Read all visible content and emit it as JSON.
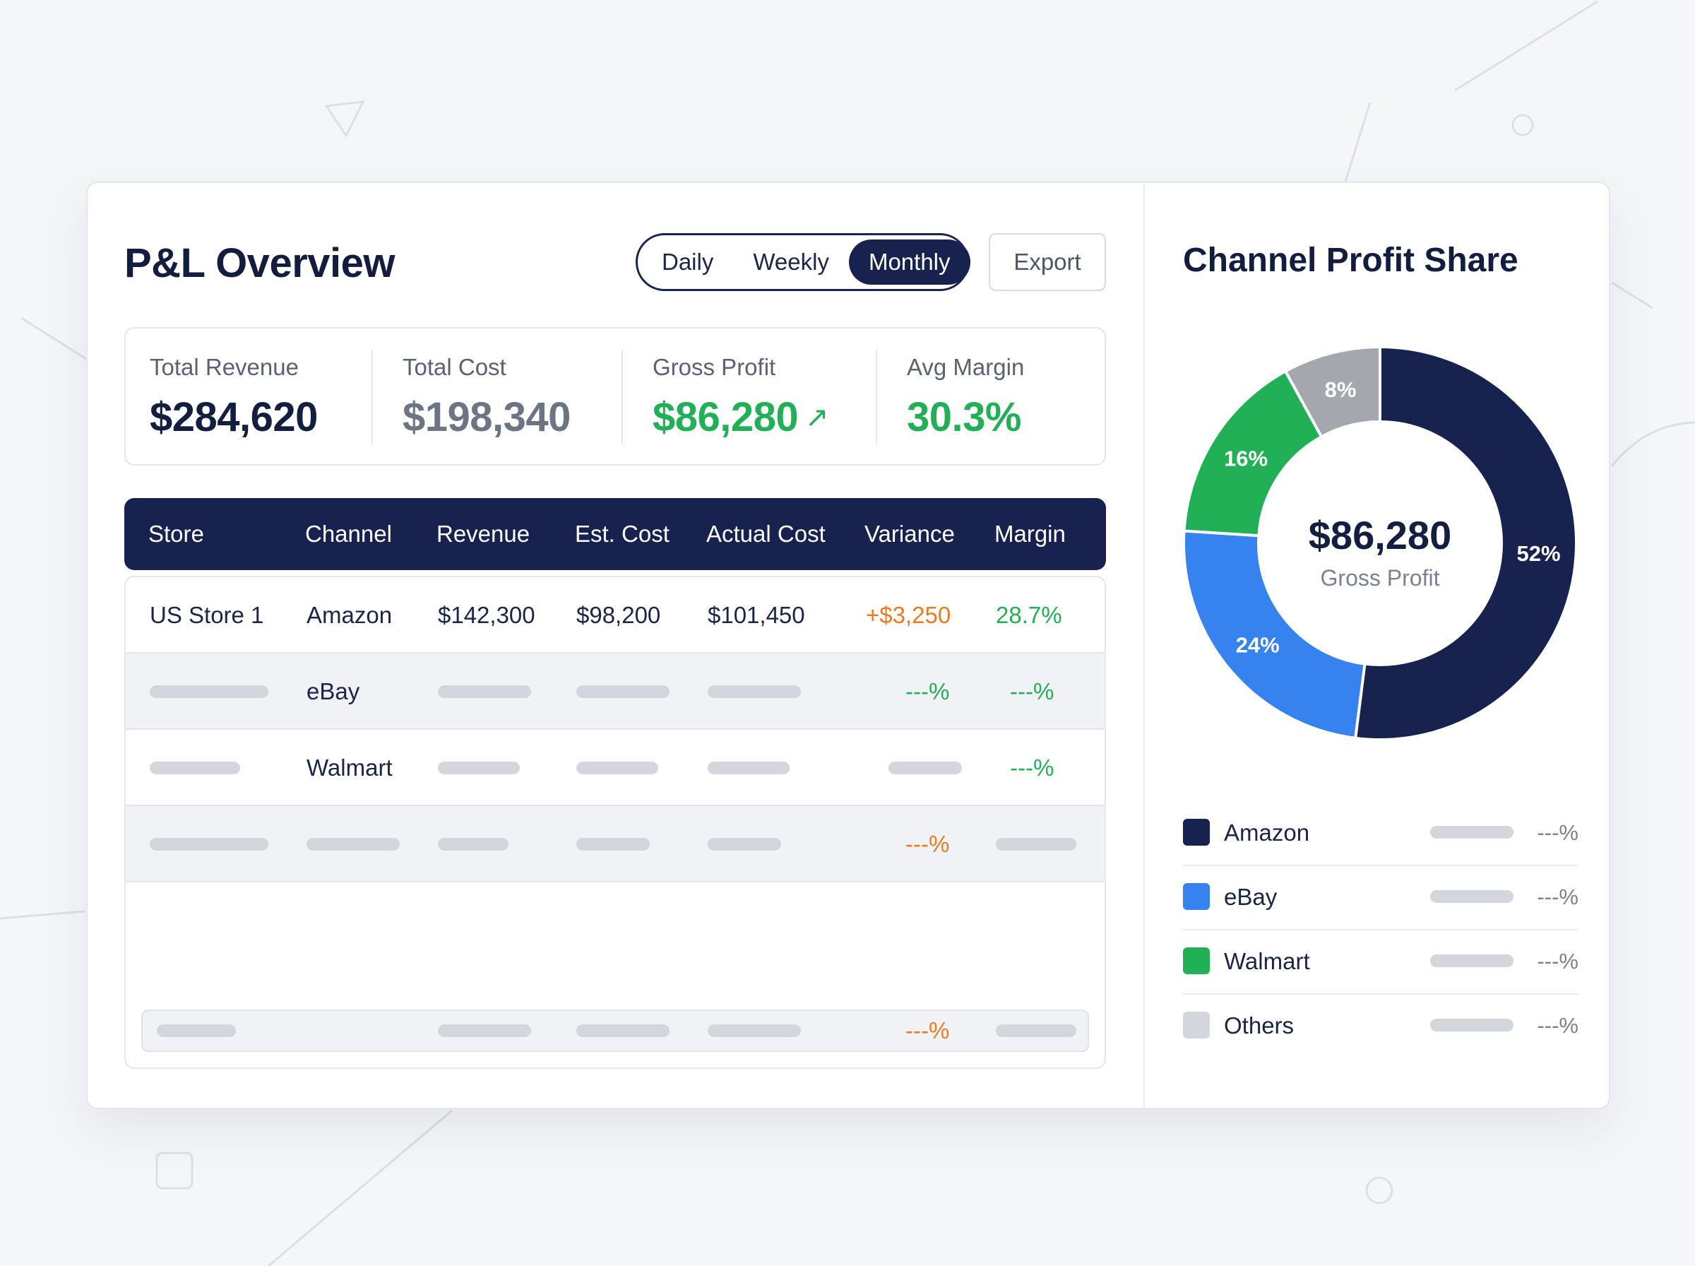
{
  "header": {
    "title": "P&L Overview",
    "period_options": [
      "Daily",
      "Weekly",
      "Monthly"
    ],
    "active_period": "Monthly",
    "export_label": "Export"
  },
  "stats": [
    {
      "label": "Total Revenue",
      "value": "$284,620"
    },
    {
      "label": "Total Cost",
      "value": "$198,340"
    },
    {
      "label": "Gross Profit",
      "value": "$86,280",
      "trend": "↗"
    },
    {
      "label": "Avg Margin",
      "value": "30.3%"
    }
  ],
  "table": {
    "columns": [
      "Store",
      "Channel",
      "Revenue",
      "Est. Cost",
      "Actual Cost",
      "Variance",
      "Margin"
    ],
    "rows": [
      {
        "store": "US Store 1",
        "channel": "Amazon",
        "revenue": "$142,300",
        "est_cost": "$98,200",
        "actual_cost": "$101,450",
        "variance": "+$3,250",
        "margin": "28.7%"
      },
      {
        "store": "",
        "channel": "eBay",
        "revenue": "",
        "est_cost": "",
        "actual_cost": "",
        "variance": "---%",
        "margin": "---%"
      },
      {
        "store": "",
        "channel": "Walmart",
        "revenue": "",
        "est_cost": "",
        "actual_cost": "",
        "variance": "",
        "margin": "---%"
      },
      {
        "store": "",
        "channel": "",
        "revenue": "",
        "est_cost": "",
        "actual_cost": "",
        "variance": "---%",
        "margin": ""
      }
    ],
    "footer": {
      "variance": "---%"
    }
  },
  "profit_share": {
    "title": "Channel Profit Share",
    "center_value": "$86,280",
    "center_label": "Gross Profit",
    "slice_labels": [
      "52%",
      "24%",
      "16%",
      "8%"
    ],
    "legend": [
      {
        "name": "Amazon",
        "pct": "---%",
        "color": "#17234e"
      },
      {
        "name": "eBay",
        "pct": "---%",
        "color": "#3682ef"
      },
      {
        "name": "Walmart",
        "pct": "---%",
        "color": "#22b057"
      },
      {
        "name": "Others",
        "pct": "---%",
        "color": "#d3d6dd"
      }
    ]
  },
  "chart_data": {
    "type": "pie",
    "categories": [
      "Amazon",
      "eBay",
      "Walmart",
      "Others"
    ],
    "values": [
      52,
      24,
      16,
      8
    ],
    "colors": [
      "#17234e",
      "#3682ef",
      "#22b057",
      "#a4a7ae"
    ],
    "title": "Channel Profit Share"
  }
}
